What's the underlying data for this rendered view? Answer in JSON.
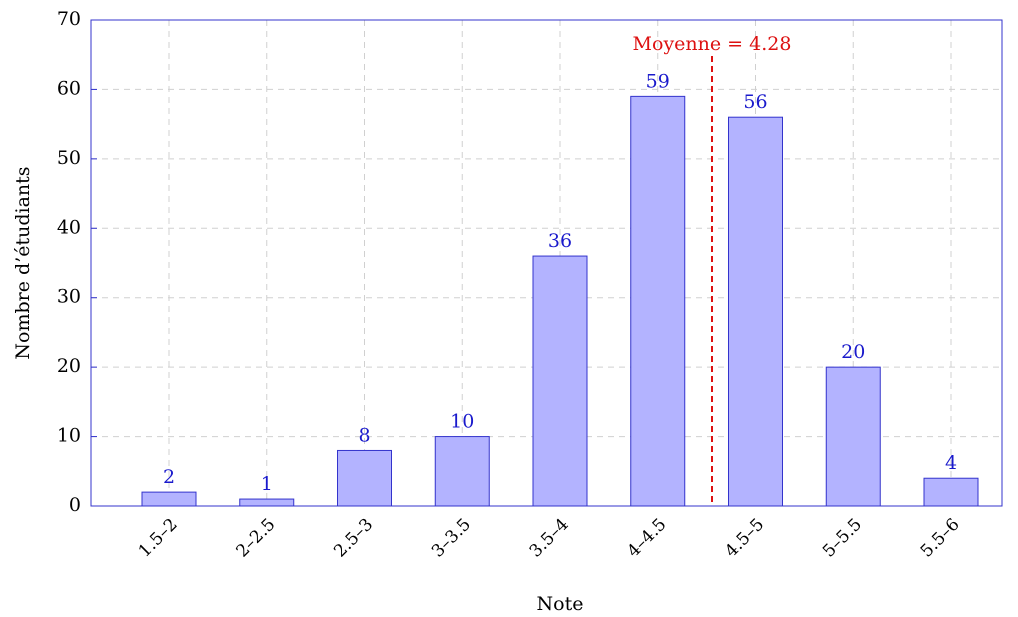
{
  "chart_data": {
    "type": "bar",
    "xlabel": "Note",
    "ylabel": "Nombre d’étudiants",
    "categories": [
      "1.5–2",
      "2–2.5",
      "2.5–3",
      "3–3.5",
      "3.5–4",
      "4–4.5",
      "4.5–5",
      "5–5.5",
      "5.5–6"
    ],
    "values": [
      2,
      1,
      8,
      10,
      36,
      59,
      56,
      20,
      4
    ],
    "color": "#b3b3ff",
    "edge_color": "#3333cc",
    "label_color": "#1a1acc",
    "annotation": "Moyenne = 4.28",
    "annotation_color": "#dd1111",
    "ylim": [
      0,
      70
    ],
    "yticks": [
      0,
      10,
      20,
      30,
      40,
      50,
      60,
      70
    ],
    "grid": true
  }
}
